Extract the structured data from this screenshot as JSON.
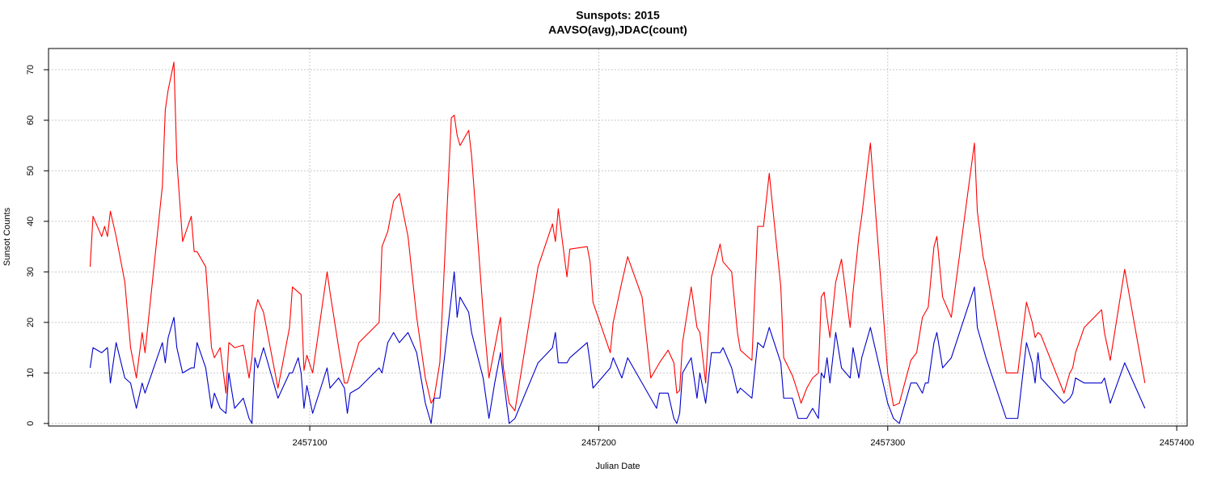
{
  "chart_data": {
    "type": "line",
    "title": "Sunspots: 2015",
    "subtitle": "AAVSO(avg),JDAC(count)",
    "xlabel": "Julian Date",
    "ylabel": "Sunsot Counts",
    "xlim": [
      2457009.6,
      2457403.6
    ],
    "ylim": [
      -0.5,
      74.2
    ],
    "xticks": [
      2457100,
      2457200,
      2457300,
      2457400
    ],
    "yticks": [
      0,
      10,
      20,
      30,
      40,
      50,
      60,
      70
    ],
    "grid": true,
    "x": [
      2457024,
      2457025,
      2457028,
      2457029,
      2457030,
      2457031,
      2457033,
      2457036,
      2457038,
      2457040,
      2457042,
      2457043,
      2457049,
      2457050,
      2457051,
      2457053,
      2457054,
      2457056,
      2457059,
      2457060,
      2457061,
      2457064,
      2457066,
      2457067,
      2457069,
      2457071,
      2457072,
      2457074,
      2457077,
      2457079,
      2457080,
      2457081,
      2457082,
      2457084,
      2457089,
      2457093,
      2457094,
      2457096,
      2457097,
      2457098,
      2457099,
      2457101,
      2457106,
      2457107,
      2457110,
      2457112,
      2457113,
      2457114,
      2457117,
      2457124,
      2457125,
      2457127,
      2457129,
      2457131,
      2457134,
      2457137,
      2457140,
      2457142,
      2457143,
      2457145,
      2457149,
      2457150,
      2457151,
      2457152,
      2457155,
      2457156,
      2457160,
      2457162,
      2457164,
      2457166,
      2457167,
      2457169,
      2457171,
      2457179,
      2457184,
      2457185,
      2457186,
      2457189,
      2457190,
      2457196,
      2457197,
      2457198,
      2457204,
      2457205,
      2457208,
      2457210,
      2457215,
      2457218,
      2457220,
      2457221,
      2457224,
      2457226,
      2457227,
      2457228,
      2457229,
      2457232,
      2457234,
      2457235,
      2457237,
      2457239,
      2457242,
      2457243,
      2457246,
      2457248,
      2457249,
      2457253,
      2457255,
      2457257,
      2457259,
      2457263,
      2457264,
      2457267,
      2457269,
      2457270,
      2457272,
      2457274,
      2457276,
      2457277,
      2457278,
      2457279,
      2457280,
      2457282,
      2457284,
      2457287,
      2457288,
      2457290,
      2457291,
      2457294,
      2457300,
      2457302,
      2457304,
      2457308,
      2457310,
      2457312,
      2457313,
      2457314,
      2457316,
      2457317,
      2457319,
      2457322,
      2457330,
      2457331,
      2457333,
      2457334,
      2457341,
      2457345,
      2457348,
      2457350,
      2457351,
      2457352,
      2457353,
      2457361,
      2457363,
      2457364,
      2457365,
      2457368,
      2457374,
      2457375,
      2457377,
      2457382,
      2457389
    ],
    "series": [
      {
        "color": "#ff0000",
        "values": [
          31,
          41,
          37,
          39,
          37,
          42,
          37,
          28,
          15,
          9,
          18,
          14,
          47,
          62,
          66,
          71.5,
          52,
          36,
          41,
          34,
          34,
          31,
          15,
          13,
          15,
          6,
          16,
          15,
          15.5,
          9,
          13,
          22,
          24.5,
          22,
          7,
          19,
          27,
          26,
          25.5,
          10.5,
          13.5,
          10,
          30,
          26,
          15,
          8,
          8,
          10,
          16,
          20,
          35,
          38,
          44,
          45.5,
          37,
          21,
          9,
          4,
          5,
          12,
          60.5,
          61,
          57,
          55,
          58,
          53,
          22,
          9,
          15,
          21,
          11,
          4,
          2.5,
          31,
          39.5,
          36,
          42.5,
          29,
          34.5,
          35,
          32,
          24,
          14,
          20,
          28,
          33,
          25,
          9,
          11,
          12,
          14.5,
          12,
          6,
          6.5,
          16,
          27,
          19,
          18,
          8,
          29,
          35.5,
          32,
          30,
          18,
          14.5,
          12.5,
          39,
          39,
          49.5,
          27,
          13,
          9.5,
          6,
          4,
          7,
          9,
          10,
          25,
          26,
          21,
          17,
          28,
          32.5,
          19,
          26,
          37,
          41,
          55.5,
          10,
          3.5,
          4,
          12.5,
          14,
          21,
          22,
          23,
          35,
          37,
          25,
          21,
          55.5,
          42,
          33,
          30.5,
          10,
          10,
          24,
          20,
          17,
          18,
          17.5,
          6,
          10,
          11,
          14,
          19,
          22.5,
          18,
          12.5,
          30.5,
          8
        ]
      },
      {
        "color": "#0000cc",
        "values": [
          11,
          15,
          14,
          14.5,
          15,
          8,
          16,
          9,
          8,
          3,
          8,
          6,
          16,
          12,
          17,
          21,
          15,
          10,
          11,
          11,
          16,
          11,
          3,
          6,
          3,
          2,
          10,
          3,
          5,
          1,
          0,
          13,
          11,
          15,
          5,
          10,
          10,
          13,
          10,
          3,
          7.5,
          2,
          11,
          7,
          9,
          7,
          2,
          6,
          7,
          11,
          10,
          16,
          18,
          16,
          18,
          14,
          4,
          0,
          5,
          5,
          25,
          30,
          21,
          25,
          22,
          18,
          9,
          1,
          8,
          14,
          9,
          0,
          1,
          12,
          15,
          18,
          12,
          12,
          13,
          16,
          12,
          7,
          11,
          13,
          9,
          13,
          8,
          5,
          3,
          6,
          6,
          1,
          0,
          2,
          10,
          13,
          5,
          10,
          4,
          14,
          14,
          15,
          11,
          6,
          7,
          5,
          16,
          15,
          19,
          12,
          5,
          5,
          1,
          1,
          1,
          3,
          1,
          10,
          9,
          13,
          8,
          18,
          11,
          9,
          15,
          9,
          13,
          19,
          4,
          1,
          0,
          8,
          8,
          6,
          8,
          8,
          16,
          18,
          11,
          13,
          27,
          19,
          15,
          13,
          1,
          1,
          16,
          12,
          8,
          14,
          9,
          4,
          5,
          6,
          9,
          8,
          8,
          9,
          4,
          12,
          3
        ]
      }
    ]
  }
}
